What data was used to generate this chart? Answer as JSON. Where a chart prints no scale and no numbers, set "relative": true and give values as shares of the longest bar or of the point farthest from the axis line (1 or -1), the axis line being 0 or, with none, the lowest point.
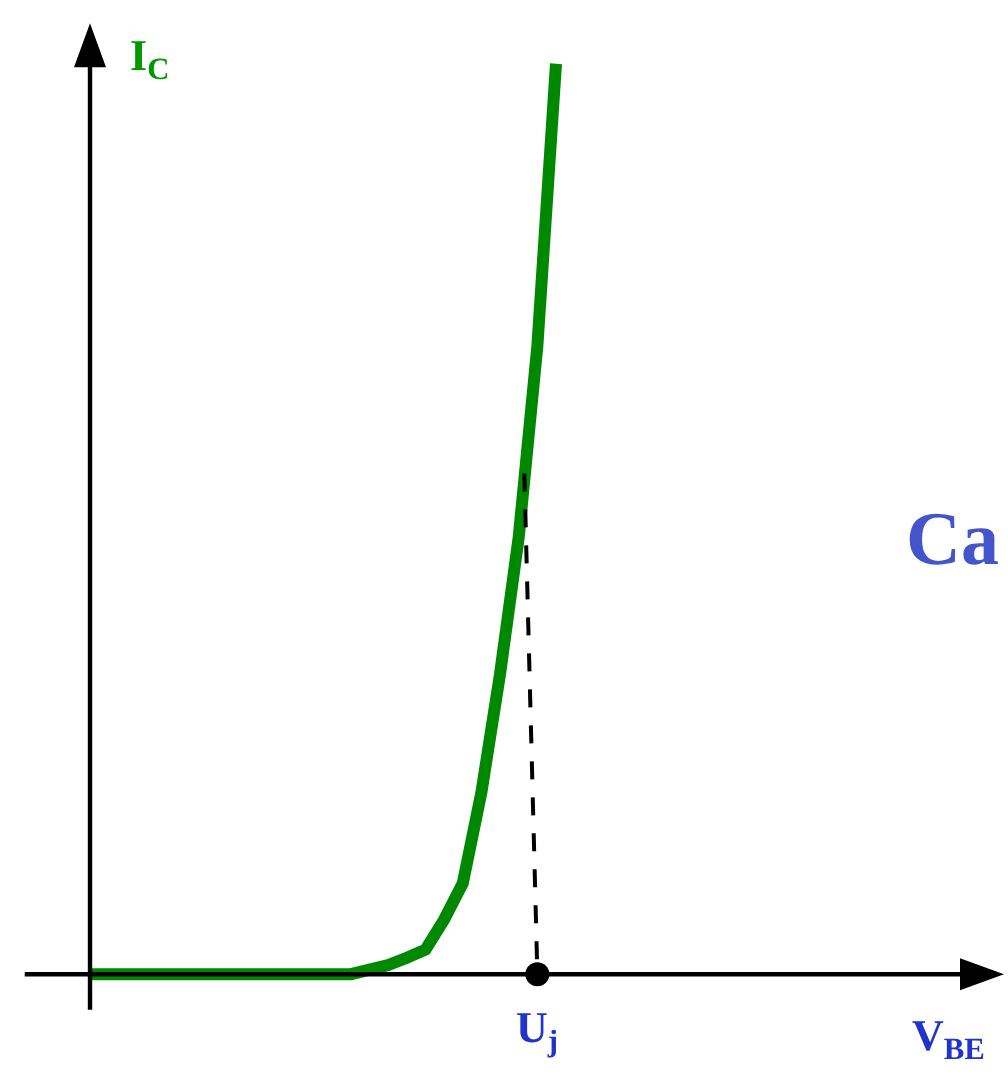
{
  "chart_data": {
    "type": "line",
    "relative": true,
    "ylabel": "I$_{C}$",
    "grid": false,
    "line_style": "solid",
    "marker": "none",
    "categories": [
      null,
      null,
      null,
      null,
      null,
      null,
      null,
      null,
      null,
      null,
      null,
      null,
      null,
      null,
      null,
      null,
      null,
      null,
      null,
      null,
      null,
      null,
      null,
      null,
      null,
      null
    ],
    "series": [
      {
        "color": "#008800",
        "values": [
          0,
          0,
          0,
          0,
          0,
          0,
          0,
          0,
          0,
          0,
          0,
          0,
          0,
          0,
          0,
          0.005,
          0.01,
          0.018,
          0.027,
          0.06,
          0.1,
          0.2,
          0.33,
          0.48,
          0.69,
          1
        ]
      }
    ],
    "annotations": [
      "U$_{j}$",
      "V$_{BE}$",
      "Ca"
    ]
  }
}
